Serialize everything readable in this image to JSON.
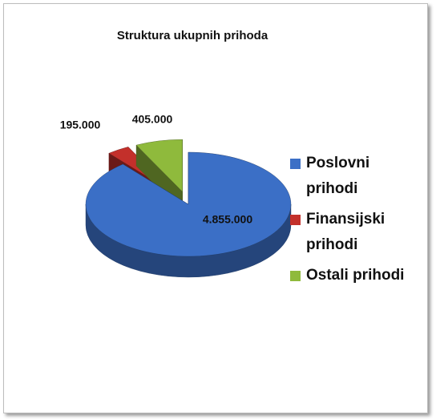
{
  "chart_data": {
    "type": "pie",
    "title": "Struktura ukupnih prihoda",
    "categories": [
      "Poslovni prihodi",
      "Finansijski prihodi",
      "Ostali prihodi"
    ],
    "values": [
      4855000,
      195000,
      405000
    ],
    "value_labels": [
      "4.855.000",
      "195.000",
      "405.000"
    ],
    "colors": [
      "#3b6fc6",
      "#c3302b",
      "#8fba3c"
    ]
  }
}
